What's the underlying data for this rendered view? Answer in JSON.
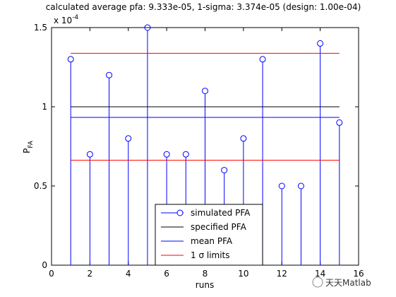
{
  "chart_data": {
    "type": "stem",
    "title": "calculated average pfa: 9.333e-05, 1-sigma: 3.374e-05 (design: 1.00e-04)",
    "xlabel": "runs",
    "ylabel": "P",
    "ylabel_sub": "FA",
    "y_multiplier_label": "x 10",
    "y_multiplier_exp": "-4",
    "xlim": [
      0,
      16
    ],
    "ylim": [
      0,
      1.5
    ],
    "y_scale_note": "values shown in units of 1e-4",
    "x_ticks": [
      0,
      2,
      4,
      6,
      8,
      10,
      12,
      14,
      16
    ],
    "x_tick_labels": [
      "0",
      "2",
      "4",
      "6",
      "8",
      "10",
      "12",
      "14",
      "16"
    ],
    "y_ticks": [
      0,
      0.5,
      1,
      1.5
    ],
    "y_tick_labels": [
      "0",
      "0.5",
      "1",
      "1.5"
    ],
    "grid": false,
    "series": [
      {
        "name": "simulated PFA",
        "kind": "stem",
        "color": "#0000ff",
        "x": [
          1,
          2,
          3,
          4,
          5,
          6,
          7,
          8,
          9,
          10,
          11,
          12,
          13,
          14,
          15
        ],
        "y": [
          1.3,
          0.7,
          1.2,
          0.8,
          1.5,
          0.7,
          0.7,
          1.1,
          0.6,
          0.8,
          1.3,
          0.5,
          0.5,
          1.4,
          0.9
        ]
      },
      {
        "name": "specified PFA",
        "kind": "hline",
        "color": "#000000",
        "x": [
          1,
          15
        ],
        "y": 1.0
      },
      {
        "name": "mean PFA",
        "kind": "hline",
        "color": "#0000ff",
        "x": [
          1,
          15
        ],
        "y": 0.9333
      },
      {
        "name": "1 σ limits",
        "kind": "hline-pair",
        "color": "#ff0000",
        "x": [
          1,
          15
        ],
        "y": [
          1.3374,
          0.6626
        ]
      }
    ],
    "legend": {
      "placement": "bottom-center",
      "entries": [
        {
          "label": "simulated PFA",
          "color": "#0000ff",
          "marker": "circle"
        },
        {
          "label": "specified PFA",
          "color": "#000000",
          "marker": "none"
        },
        {
          "label": "mean PFA",
          "color": "#0000ff",
          "marker": "none"
        },
        {
          "label": "1 σ limits",
          "color": "#ff0000",
          "marker": "none"
        }
      ]
    }
  },
  "watermark": {
    "text": "天天Matlab"
  }
}
